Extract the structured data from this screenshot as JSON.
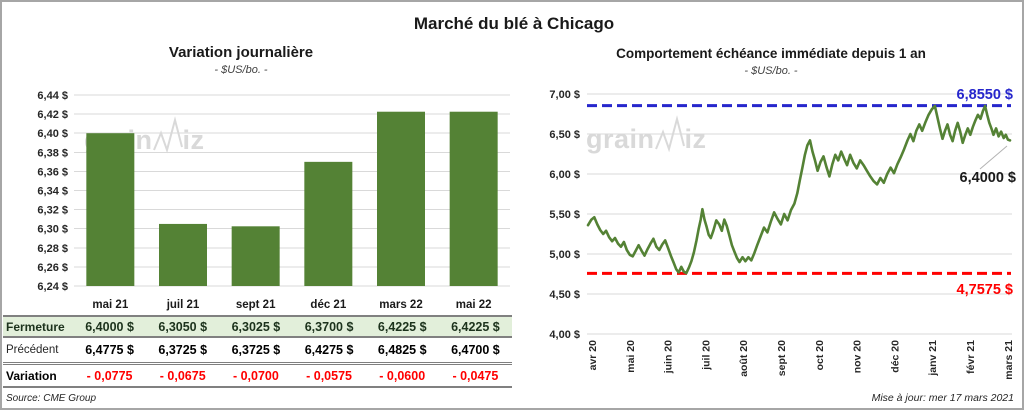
{
  "page": {
    "title": "Marché du blé à Chicago",
    "source": "Source: CME Group",
    "updated": "Mise à jour: mer 17 mars 2021",
    "watermark": "grainwiz"
  },
  "colors": {
    "green": "#548235",
    "table_row_green": "#e2efda",
    "blue": "#2626cc",
    "red": "#ff0000",
    "grid": "#d9d9d9",
    "watermark": "#d9d9d9",
    "border": "#a6a6a6"
  },
  "chart_data": [
    {
      "type": "bar",
      "title": "Variation  journalière",
      "subtitle": "- $US/bo. -",
      "categories": [
        "mai 21",
        "juil 21",
        "sept 21",
        "déc 21",
        "mars 22",
        "mai 22"
      ],
      "values": [
        6.4,
        6.305,
        6.3025,
        6.37,
        6.4225,
        6.4225
      ],
      "ylim": [
        6.24,
        6.44
      ],
      "ytick_step": 0.02,
      "ytick_labels": [
        "6,44 $",
        "6,42 $",
        "6,40 $",
        "6,38 $",
        "6,36 $",
        "6,34 $",
        "6,32 $",
        "6,30 $",
        "6,28 $",
        "6,26 $",
        "6,24 $"
      ],
      "grid": true,
      "bar_color": "#548235"
    },
    {
      "type": "line",
      "title": "Comportement  échéance immédiate depuis 1 an",
      "subtitle": "- $US/bo. -",
      "x_labels": [
        "avr 20",
        "mai 20",
        "juin 20",
        "juil 20",
        "août 20",
        "sept 20",
        "oct 20",
        "nov 20",
        "déc 20",
        "janv 21",
        "févr 21",
        "mars 21"
      ],
      "ylim": [
        4.0,
        7.0
      ],
      "ytick_step": 0.5,
      "ytick_labels": [
        "7,00 $",
        "6,50 $",
        "6,00 $",
        "5,50 $",
        "5,00 $",
        "4,50 $",
        "4,00 $"
      ],
      "grid": true,
      "line_color": "#548235",
      "high_line": {
        "value": 6.855,
        "label": "6,8550 $",
        "color": "#2626cc"
      },
      "low_line": {
        "value": 4.7575,
        "label": "4,7575 $",
        "color": "#ff0000"
      },
      "last_point": {
        "value": 6.4,
        "label": "6,4000 $"
      },
      "points": [
        [
          0.0,
          5.36
        ],
        [
          0.008,
          5.43
        ],
        [
          0.015,
          5.46
        ],
        [
          0.022,
          5.37
        ],
        [
          0.029,
          5.3
        ],
        [
          0.036,
          5.25
        ],
        [
          0.043,
          5.29
        ],
        [
          0.05,
          5.21
        ],
        [
          0.057,
          5.16
        ],
        [
          0.064,
          5.2
        ],
        [
          0.071,
          5.13
        ],
        [
          0.078,
          5.09
        ],
        [
          0.085,
          5.15
        ],
        [
          0.092,
          5.05
        ],
        [
          0.099,
          4.99
        ],
        [
          0.106,
          4.97
        ],
        [
          0.113,
          5.04
        ],
        [
          0.12,
          5.11
        ],
        [
          0.127,
          5.04
        ],
        [
          0.134,
          4.98
        ],
        [
          0.141,
          5.06
        ],
        [
          0.148,
          5.13
        ],
        [
          0.155,
          5.19
        ],
        [
          0.162,
          5.09
        ],
        [
          0.169,
          5.05
        ],
        [
          0.176,
          5.12
        ],
        [
          0.183,
          5.17
        ],
        [
          0.19,
          5.07
        ],
        [
          0.197,
          4.97
        ],
        [
          0.203,
          4.89
        ],
        [
          0.209,
          4.81
        ],
        [
          0.215,
          4.77
        ],
        [
          0.221,
          4.84
        ],
        [
          0.227,
          4.78
        ],
        [
          0.233,
          4.76
        ],
        [
          0.239,
          4.83
        ],
        [
          0.245,
          4.91
        ],
        [
          0.251,
          5.02
        ],
        [
          0.257,
          5.17
        ],
        [
          0.262,
          5.31
        ],
        [
          0.267,
          5.43
        ],
        [
          0.271,
          5.56
        ],
        [
          0.276,
          5.43
        ],
        [
          0.281,
          5.34
        ],
        [
          0.286,
          5.24
        ],
        [
          0.291,
          5.2
        ],
        [
          0.297,
          5.29
        ],
        [
          0.304,
          5.42
        ],
        [
          0.311,
          5.37
        ],
        [
          0.317,
          5.29
        ],
        [
          0.323,
          5.43
        ],
        [
          0.329,
          5.35
        ],
        [
          0.335,
          5.23
        ],
        [
          0.341,
          5.11
        ],
        [
          0.347,
          5.03
        ],
        [
          0.353,
          4.95
        ],
        [
          0.359,
          4.9
        ],
        [
          0.366,
          4.96
        ],
        [
          0.373,
          4.91
        ],
        [
          0.38,
          4.96
        ],
        [
          0.387,
          4.92
        ],
        [
          0.394,
          5.01
        ],
        [
          0.401,
          5.11
        ],
        [
          0.409,
          5.22
        ],
        [
          0.417,
          5.33
        ],
        [
          0.425,
          5.27
        ],
        [
          0.433,
          5.4
        ],
        [
          0.441,
          5.52
        ],
        [
          0.449,
          5.44
        ],
        [
          0.457,
          5.37
        ],
        [
          0.465,
          5.5
        ],
        [
          0.473,
          5.42
        ],
        [
          0.481,
          5.55
        ],
        [
          0.489,
          5.63
        ],
        [
          0.496,
          5.76
        ],
        [
          0.502,
          5.92
        ],
        [
          0.508,
          6.08
        ],
        [
          0.514,
          6.24
        ],
        [
          0.52,
          6.36
        ],
        [
          0.526,
          6.42
        ],
        [
          0.532,
          6.28
        ],
        [
          0.538,
          6.17
        ],
        [
          0.544,
          6.04
        ],
        [
          0.551,
          6.15
        ],
        [
          0.558,
          6.22
        ],
        [
          0.565,
          6.09
        ],
        [
          0.572,
          5.97
        ],
        [
          0.579,
          6.12
        ],
        [
          0.586,
          6.24
        ],
        [
          0.593,
          6.17
        ],
        [
          0.6,
          6.28
        ],
        [
          0.607,
          6.19
        ],
        [
          0.614,
          6.11
        ],
        [
          0.621,
          6.24
        ],
        [
          0.629,
          6.14
        ],
        [
          0.637,
          6.07
        ],
        [
          0.645,
          6.17
        ],
        [
          0.653,
          6.11
        ],
        [
          0.661,
          6.04
        ],
        [
          0.669,
          5.97
        ],
        [
          0.677,
          5.91
        ],
        [
          0.685,
          5.87
        ],
        [
          0.693,
          5.95
        ],
        [
          0.701,
          5.89
        ],
        [
          0.709,
          6.0
        ],
        [
          0.717,
          6.08
        ],
        [
          0.725,
          6.01
        ],
        [
          0.733,
          6.12
        ],
        [
          0.741,
          6.21
        ],
        [
          0.749,
          6.31
        ],
        [
          0.757,
          6.42
        ],
        [
          0.764,
          6.5
        ],
        [
          0.771,
          6.41
        ],
        [
          0.778,
          6.54
        ],
        [
          0.785,
          6.62
        ],
        [
          0.792,
          6.54
        ],
        [
          0.799,
          6.64
        ],
        [
          0.807,
          6.74
        ],
        [
          0.815,
          6.81
        ],
        [
          0.822,
          6.85
        ],
        [
          0.828,
          6.71
        ],
        [
          0.834,
          6.57
        ],
        [
          0.84,
          6.44
        ],
        [
          0.846,
          6.54
        ],
        [
          0.852,
          6.62
        ],
        [
          0.858,
          6.49
        ],
        [
          0.864,
          6.41
        ],
        [
          0.87,
          6.54
        ],
        [
          0.876,
          6.64
        ],
        [
          0.882,
          6.53
        ],
        [
          0.888,
          6.39
        ],
        [
          0.894,
          6.49
        ],
        [
          0.9,
          6.57
        ],
        [
          0.906,
          6.49
        ],
        [
          0.912,
          6.59
        ],
        [
          0.918,
          6.67
        ],
        [
          0.924,
          6.74
        ],
        [
          0.93,
          6.69
        ],
        [
          0.936,
          6.79
        ],
        [
          0.941,
          6.85
        ],
        [
          0.946,
          6.74
        ],
        [
          0.951,
          6.64
        ],
        [
          0.956,
          6.57
        ],
        [
          0.961,
          6.49
        ],
        [
          0.967,
          6.57
        ],
        [
          0.973,
          6.47
        ],
        [
          0.979,
          6.53
        ],
        [
          0.985,
          6.45
        ],
        [
          0.99,
          6.49
        ],
        [
          0.995,
          6.43
        ],
        [
          1.0,
          6.42
        ]
      ]
    }
  ],
  "table": {
    "rows": [
      {
        "label": "Fermeture",
        "style": "ferm",
        "values": [
          "6,4000 $",
          "6,3050 $",
          "6,3025 $",
          "6,3700 $",
          "6,4225 $",
          "6,4225 $"
        ]
      },
      {
        "label": "Précédent",
        "style": "prec",
        "values": [
          "6,4775 $",
          "6,3725 $",
          "6,3725 $",
          "6,4275 $",
          "6,4825 $",
          "6,4700 $"
        ]
      },
      {
        "label": "Variation",
        "style": "var",
        "values": [
          "- 0,0775",
          "- 0,0675",
          "- 0,0700",
          "- 0,0575",
          "- 0,0600",
          "- 0,0475"
        ]
      }
    ]
  }
}
